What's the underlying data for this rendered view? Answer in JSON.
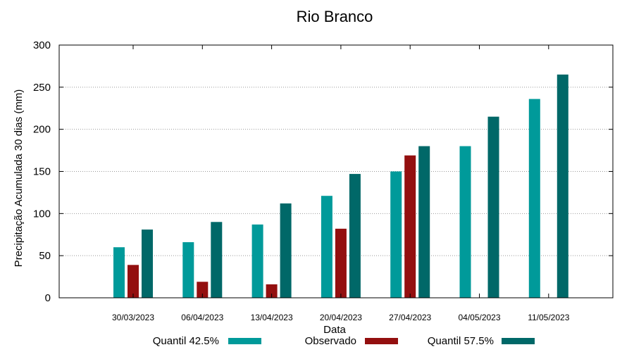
{
  "chart_data": {
    "type": "bar",
    "title": "Rio Branco",
    "xlabel": "Data",
    "ylabel": "Precipitação Acumulada 30 dias (mm)",
    "ylim": [
      0,
      300
    ],
    "yticks": [
      0,
      50,
      100,
      150,
      200,
      250,
      300
    ],
    "grid": true,
    "legend_position": "bottom",
    "categories": [
      "30/03/2023",
      "06/04/2023",
      "13/04/2023",
      "20/04/2023",
      "27/04/2023",
      "04/05/2023",
      "11/05/2023"
    ],
    "series": [
      {
        "name": "Quantil 42.5%",
        "color": "#009a9a",
        "values": [
          60,
          66,
          87,
          121,
          150,
          180,
          236
        ]
      },
      {
        "name": "Observado",
        "color": "#930f0f",
        "values": [
          39,
          19,
          16,
          82,
          169,
          null,
          null
        ]
      },
      {
        "name": "Quantil 57.5%",
        "color": "#006868",
        "values": [
          81,
          90,
          112,
          147,
          180,
          215,
          265
        ]
      }
    ]
  }
}
